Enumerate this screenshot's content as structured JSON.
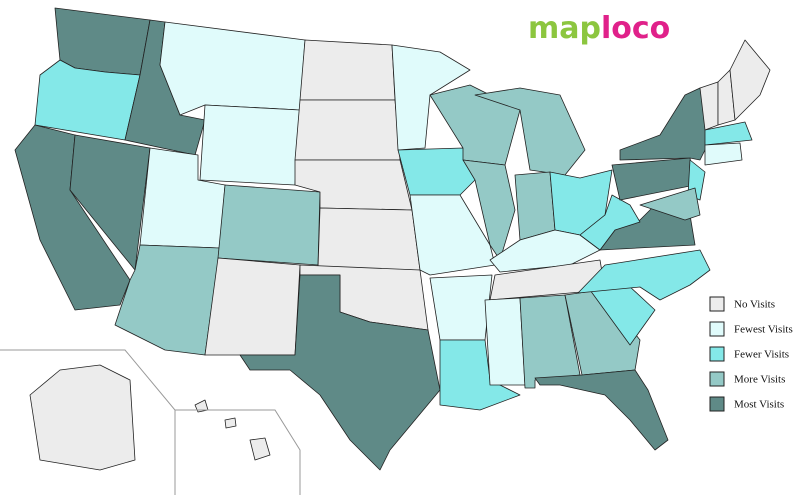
{
  "logo": {
    "part1": "map",
    "part2": "loco"
  },
  "legend": [
    {
      "label": "No Visits",
      "color": "#ececec"
    },
    {
      "label": "Fewest Visits",
      "color": "#e0fbfb"
    },
    {
      "label": "Fewer Visits",
      "color": "#84e8e8"
    },
    {
      "label": "More Visits",
      "color": "#94c9c6"
    },
    {
      "label": "Most Visits",
      "color": "#5f8a87"
    }
  ]
}
